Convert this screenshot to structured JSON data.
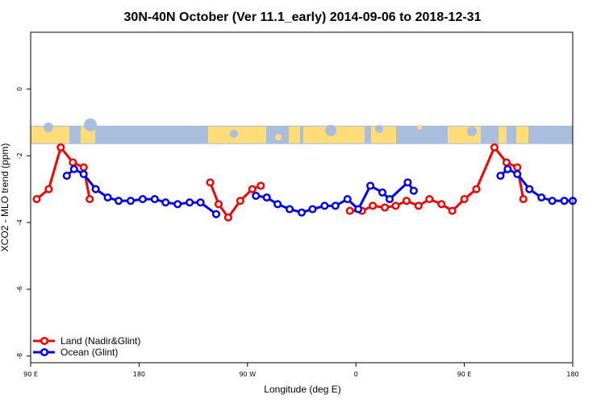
{
  "chart_data": {
    "type": "line",
    "title": "30N-40N October (Ver 11.1_early)   2014-09-06 to 2018-12-31",
    "xlabel": "Longitude (deg E)",
    "ylabel": "XCO2 - MLO trend (ppm)",
    "xlim": [
      90,
      540
    ],
    "ylim": [
      -8.2,
      1.7
    ],
    "x_ticks": [
      {
        "value": 90,
        "label": "90 E"
      },
      {
        "value": 180,
        "label": "180"
      },
      {
        "value": 270,
        "label": "90 W"
      },
      {
        "value": 360,
        "label": "0"
      },
      {
        "value": 450,
        "label": "90 E"
      },
      {
        "value": 540,
        "label": "180"
      }
    ],
    "y_ticks": [
      {
        "value": 0,
        "label": "0"
      },
      {
        "value": -2,
        "label": "-2"
      },
      {
        "value": -4,
        "label": "-4"
      },
      {
        "value": -6,
        "label": "-6"
      },
      {
        "value": -8,
        "label": "-8"
      }
    ],
    "grid": false,
    "legend_position": "bottom-left",
    "map_strip": {
      "y_top": -1.1,
      "y_bottom": -1.65,
      "ocean_color": "#a9bedf",
      "land_color": "#fedc78"
    },
    "series": [
      {
        "name": "Land (Nadir&Glint)",
        "color": "#ff0000",
        "segments": [
          [
            [
              95,
              -3.3
            ],
            [
              105,
              -3.0
            ],
            [
              115,
              -1.75
            ],
            [
              125,
              -2.2
            ],
            [
              134,
              -2.35
            ],
            [
              139,
              -3.3
            ]
          ],
          [
            [
              239,
              -2.8
            ],
            [
              246,
              -3.45
            ],
            [
              254,
              -3.85
            ],
            [
              264,
              -3.35
            ],
            [
              274,
              -3.0
            ],
            [
              281,
              -2.9
            ]
          ],
          [
            [
              355,
              -3.65
            ],
            [
              365,
              -3.65
            ],
            [
              374,
              -3.5
            ],
            [
              384,
              -3.55
            ],
            [
              393,
              -3.5
            ],
            [
              402,
              -3.35
            ],
            [
              412,
              -3.5
            ],
            [
              421,
              -3.3
            ],
            [
              431,
              -3.45
            ],
            [
              440,
              -3.65
            ],
            [
              450,
              -3.3
            ],
            [
              460,
              -3.0
            ],
            [
              475,
              -1.75
            ],
            [
              485,
              -2.2
            ],
            [
              494,
              -2.35
            ],
            [
              499,
              -3.3
            ]
          ]
        ]
      },
      {
        "name": "Ocean (Glint)",
        "color": "#0000ff",
        "segments": [
          [
            [
              120,
              -2.6
            ],
            [
              126,
              -2.4
            ],
            [
              134,
              -2.55
            ],
            [
              144,
              -3.0
            ],
            [
              154,
              -3.25
            ],
            [
              163,
              -3.35
            ],
            [
              173,
              -3.35
            ],
            [
              183,
              -3.3
            ],
            [
              193,
              -3.3
            ],
            [
              202,
              -3.4
            ],
            [
              212,
              -3.45
            ],
            [
              222,
              -3.4
            ],
            [
              231,
              -3.4
            ],
            [
              244,
              -3.75
            ]
          ],
          [
            [
              277,
              -3.2
            ],
            [
              286,
              -3.25
            ],
            [
              295,
              -3.45
            ],
            [
              305,
              -3.6
            ],
            [
              315,
              -3.7
            ],
            [
              324,
              -3.6
            ],
            [
              334,
              -3.5
            ],
            [
              343,
              -3.5
            ],
            [
              353,
              -3.3
            ],
            [
              362,
              -3.6
            ],
            [
              372,
              -2.9
            ],
            [
              382,
              -3.1
            ],
            [
              388,
              -3.3
            ],
            [
              403,
              -2.8
            ],
            [
              408,
              -3.05
            ]
          ],
          [
            [
              480,
              -2.6
            ],
            [
              486,
              -2.4
            ],
            [
              494,
              -2.55
            ],
            [
              504,
              -3.0
            ],
            [
              514,
              -3.25
            ],
            [
              523,
              -3.35
            ],
            [
              533,
              -3.35
            ],
            [
              540,
              -3.35
            ]
          ]
        ]
      }
    ]
  }
}
